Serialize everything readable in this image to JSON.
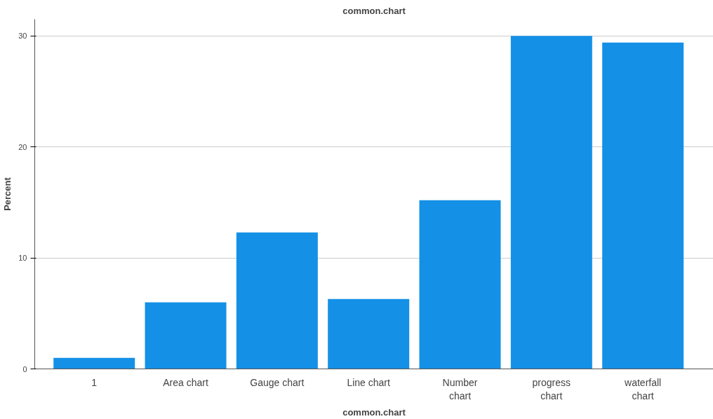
{
  "chart_data": {
    "type": "bar",
    "title": "common.chart",
    "xlabel": "common.chart",
    "ylabel": "Percent",
    "categories": [
      "1",
      "Area chart",
      "Gauge chart",
      "Line chart",
      "Number chart",
      "progress chart",
      "waterfall chart"
    ],
    "values": [
      1.0,
      6.0,
      12.3,
      6.3,
      15.2,
      30.0,
      29.4
    ],
    "color": "#1490e6",
    "ylim": [
      0,
      31.5
    ],
    "yticks": [
      0,
      10,
      20,
      30
    ],
    "grid": "y"
  }
}
